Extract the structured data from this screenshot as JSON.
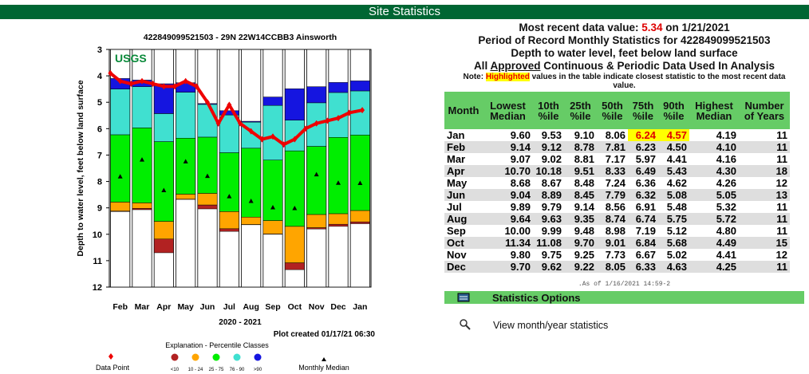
{
  "header": {
    "title": "Site Statistics"
  },
  "chart_data": {
    "type": "percentile_bars",
    "title": "422849099521503 - 29N 22W14CCBB3 Ainsworth",
    "logo": "USGS",
    "ylabel": "Depth to water level, feet below land surface",
    "xlabel": "2020 - 2021",
    "note": "Plot created 01/17/21 06:30",
    "categories": [
      "Feb",
      "Mar",
      "Apr",
      "May",
      "Jun",
      "Jul",
      "Aug",
      "Sep",
      "Oct",
      "Nov",
      "Dec",
      "Jan"
    ],
    "ylim": [
      3,
      12
    ],
    "yticks": [
      3,
      4,
      5,
      6,
      7,
      8,
      9,
      10,
      11,
      12
    ],
    "y_inverted": true,
    "legend_title": "Explanation - Percentile Classes",
    "classes": [
      {
        "name": "<10",
        "color": "#b22222"
      },
      {
        "name": "10 - 24",
        "color": "#ffa500"
      },
      {
        "name": "25 - 75",
        "color": "#00ee00"
      },
      {
        "name": "76 - 90",
        "color": "#40e0d0"
      },
      {
        "name": ">90",
        "color": "#1515e0"
      }
    ],
    "median_label": "Monthly Median",
    "points": {
      "name": "Data Point",
      "color": "#ee0000",
      "xlim": [
        0,
        12
      ],
      "x": [
        0.05,
        0.5,
        1.0,
        1.5,
        2.0,
        2.5,
        3.0,
        3.5,
        4.0,
        4.5,
        5.0,
        5.5,
        6.0,
        6.5,
        7.0,
        7.5,
        8.0,
        8.5,
        9.0,
        9.5,
        10.0,
        10.5,
        11.0,
        11.6
      ],
      "values": [
        3.9,
        4.2,
        4.3,
        4.2,
        4.3,
        4.4,
        4.4,
        4.2,
        4.4,
        5.0,
        5.8,
        5.1,
        5.8,
        6.1,
        6.4,
        6.3,
        6.6,
        6.4,
        6.0,
        5.8,
        5.7,
        5.6,
        5.4,
        5.3
      ]
    }
  },
  "summary": {
    "recent_label": "Most recent data value:",
    "recent_value": "5.34",
    "recent_on": "on",
    "recent_date": "1/21/2021",
    "period": "Period of Record Monthly Statistics for 422849099521503",
    "depth": "Depth to water level, feet below land surface",
    "all": "All",
    "approved": "Approved",
    "analysis": "Continuous & Periodic Data Used In Analysis",
    "note_label": "Note:",
    "note_highlight": "Highlighted",
    "note_text": "values in the table indicate closest statistic to the most recent data value."
  },
  "table": {
    "columns": [
      "Month",
      "Lowest Median",
      "10th %ile",
      "25th %ile",
      "50th %ile",
      "75th %ile",
      "90th %ile",
      "Highest Median",
      "Number of Years"
    ],
    "rows": [
      [
        "Jan",
        "9.60",
        "9.53",
        "9.10",
        "8.06",
        "6.24",
        "4.57",
        "4.19",
        "11"
      ],
      [
        "Feb",
        "9.14",
        "9.12",
        "8.78",
        "7.81",
        "6.23",
        "4.50",
        "4.10",
        "11"
      ],
      [
        "Mar",
        "9.07",
        "9.02",
        "8.81",
        "7.17",
        "5.97",
        "4.41",
        "4.16",
        "11"
      ],
      [
        "Apr",
        "10.70",
        "10.18",
        "9.51",
        "8.33",
        "6.49",
        "5.43",
        "4.30",
        "18"
      ],
      [
        "May",
        "8.68",
        "8.67",
        "8.48",
        "7.24",
        "6.36",
        "4.62",
        "4.26",
        "12"
      ],
      [
        "Jun",
        "9.04",
        "8.89",
        "8.45",
        "7.79",
        "6.32",
        "5.08",
        "5.05",
        "13"
      ],
      [
        "Jul",
        "9.89",
        "9.79",
        "9.14",
        "8.56",
        "6.91",
        "5.48",
        "5.32",
        "11"
      ],
      [
        "Aug",
        "9.64",
        "9.63",
        "9.35",
        "8.74",
        "6.74",
        "5.75",
        "5.72",
        "11"
      ],
      [
        "Sep",
        "10.00",
        "9.99",
        "9.48",
        "8.98",
        "7.19",
        "5.12",
        "4.80",
        "11"
      ],
      [
        "Oct",
        "11.34",
        "11.08",
        "9.70",
        "9.01",
        "6.84",
        "5.68",
        "4.49",
        "15"
      ],
      [
        "Nov",
        "9.80",
        "9.75",
        "9.25",
        "7.73",
        "6.67",
        "5.02",
        "4.41",
        "12"
      ],
      [
        "Dec",
        "9.70",
        "9.62",
        "9.22",
        "8.05",
        "6.33",
        "4.63",
        "4.25",
        "11"
      ]
    ],
    "highlighted": [
      {
        "row": 0,
        "col": 5
      },
      {
        "row": 0,
        "col": 6
      }
    ]
  },
  "as_of": ".As of 1/16/2021 14:59-2",
  "options": {
    "title": "Statistics Options",
    "link": "View month/year statistics"
  }
}
